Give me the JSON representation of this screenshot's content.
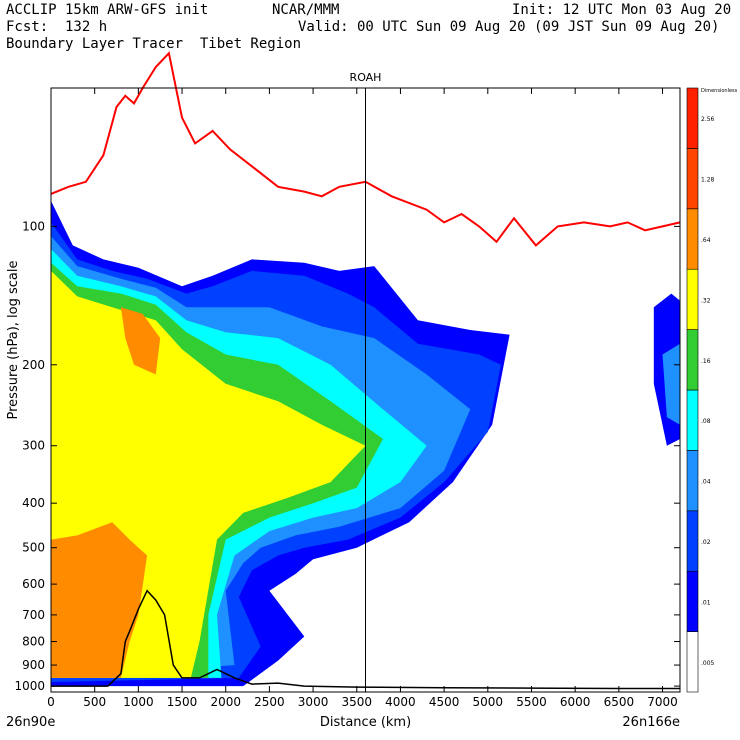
{
  "header": {
    "model": "ACCLIP 15km ARW-GFS init",
    "org": "NCAR/MMM",
    "init": "Init: 12 UTC Mon 03 Aug 20",
    "fcst": "Fcst:  132 h",
    "valid": "Valid: 00 UTC Sun 09 Aug 20 (09 JST Sun 09 Aug 20)",
    "product": "Boundary Layer Tracer  Tibet Region"
  },
  "chart_data": {
    "type": "contour-cross-section",
    "title": "ROAH",
    "xlabel": "Distance (km)",
    "ylabel": "Pressure (hPa), log scale",
    "x_ticks": [
      0,
      500,
      1000,
      1500,
      2000,
      2500,
      3000,
      3500,
      4000,
      4500,
      5000,
      5500,
      6000,
      6500,
      7000
    ],
    "xlim": [
      0,
      7200
    ],
    "y_ticks": [
      100,
      200,
      300,
      400,
      500,
      600,
      700,
      800,
      900,
      1000
    ],
    "ylim": [
      1030,
      50
    ],
    "y_scale": "log",
    "x_endpoint_left": "26n90e",
    "x_endpoint_right": "26n166e",
    "vertical_marker_km": 3600,
    "colorbar": {
      "title": "Dimensionless",
      "labels": [
        ".005",
        ".01",
        ".02",
        ".04",
        ".08",
        ".16",
        ".32",
        ".64",
        "1.28",
        "2.56"
      ],
      "colors": [
        "#ffffff",
        "#0000ff",
        "#0040ff",
        "#1e90ff",
        "#00ffff",
        "#32cd32",
        "#ffff00",
        "#ff8c00",
        "#ff4500",
        "#ff2000"
      ]
    },
    "tropopause_line_color": "#ff0000",
    "terrain_line_color": "#000000"
  }
}
